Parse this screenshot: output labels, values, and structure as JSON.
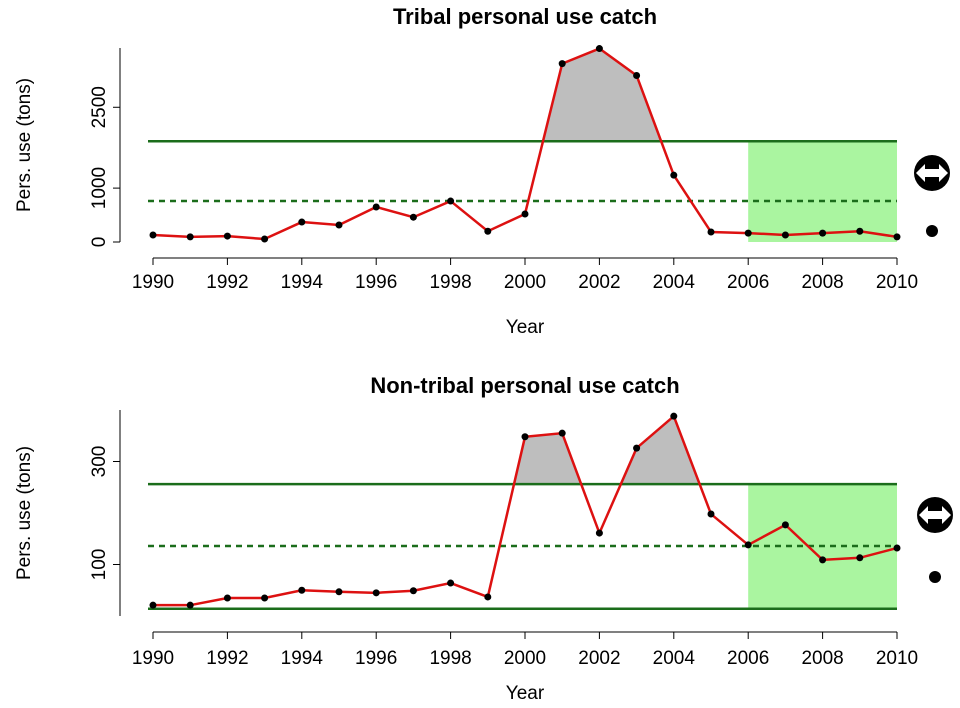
{
  "chart_data": [
    {
      "type": "line",
      "title": "Tribal personal use catch",
      "xlabel": "Year",
      "ylabel": "Pers. use (tons)",
      "x": [
        1990,
        1991,
        1992,
        1993,
        1994,
        1995,
        1996,
        1997,
        1998,
        1999,
        2000,
        2001,
        2002,
        2003,
        2004,
        2005,
        2006,
        2007,
        2008,
        2009,
        2010
      ],
      "values": [
        130,
        95,
        110,
        55,
        370,
        315,
        650,
        460,
        760,
        200,
        520,
        3310,
        3590,
        3090,
        1240,
        185,
        165,
        130,
        165,
        200,
        95
      ],
      "color": "#dd1111",
      "xlim": [
        1990,
        2010
      ],
      "xticks": [
        1990,
        1992,
        1994,
        1996,
        1998,
        2000,
        2002,
        2004,
        2006,
        2008,
        2010
      ],
      "ylim": [
        0,
        3600
      ],
      "yticks": [
        0,
        1000,
        2500
      ],
      "reference_lines": [
        {
          "value": 1870,
          "style": "solid",
          "shade_above": true
        },
        {
          "value": 760,
          "style": "dashed"
        }
      ],
      "reference_color": "#1b6d1b",
      "shade_color": "#bebebe",
      "highlight_x": [
        2006,
        2010
      ],
      "highlight_color": "#aaf5a0"
    },
    {
      "type": "line",
      "title": "Non-tribal personal use catch",
      "xlabel": "Year",
      "ylabel": "Pers. use (tons)",
      "x": [
        1990,
        1991,
        1992,
        1993,
        1994,
        1995,
        1996,
        1997,
        1998,
        1999,
        2000,
        2001,
        2002,
        2003,
        2004,
        2005,
        2006,
        2007,
        2008,
        2009,
        2010
      ],
      "values": [
        21,
        21,
        35,
        35,
        50,
        47,
        45,
        49,
        64,
        37,
        348,
        355,
        161,
        326,
        388,
        198,
        138,
        177,
        109,
        113,
        132
      ],
      "color": "#dd1111",
      "xlim": [
        1990,
        2010
      ],
      "xticks": [
        1990,
        1992,
        1994,
        1996,
        1998,
        2000,
        2002,
        2004,
        2006,
        2008,
        2010
      ],
      "ylim": [
        0,
        400
      ],
      "yticks": [
        100,
        300
      ],
      "reference_lines": [
        {
          "value": 256,
          "style": "solid",
          "shade_above": true
        },
        {
          "value": 136,
          "style": "dashed"
        },
        {
          "value": 14,
          "style": "solid"
        }
      ],
      "reference_color": "#1b6d1b",
      "shade_color": "#bebebe",
      "highlight_x": [
        2006,
        2010
      ],
      "highlight_color": "#aaf5a0"
    }
  ]
}
